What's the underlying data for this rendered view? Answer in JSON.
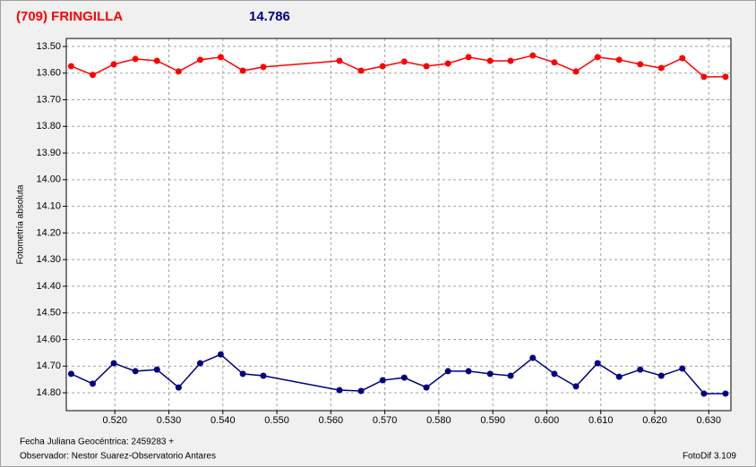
{
  "chart_data": {
    "type": "line",
    "title": "(709) FRINGILLA",
    "subtitle": "14.786",
    "y_label": "Fotometría absoluta",
    "x_label": "Fecha Juliana Geocéntrica: 2459283 +",
    "observer": "Observador: Nestor Suarez-Observatorio Antares",
    "software": "FotoDif 3.109",
    "x": [
      0.5119,
      0.5159,
      0.5198,
      0.5238,
      0.5278,
      0.5318,
      0.5358,
      0.5396,
      0.5437,
      0.5475,
      0.5616,
      0.5656,
      0.5696,
      0.5736,
      0.5777,
      0.5817,
      0.5855,
      0.5895,
      0.5933,
      0.5974,
      0.6014,
      0.6054,
      0.6094,
      0.6134,
      0.6173,
      0.6212,
      0.6251,
      0.6291,
      0.6331
    ],
    "series": [
      {
        "color": "#ff0000",
        "values": [
          13.574,
          13.607,
          13.567,
          13.547,
          13.554,
          13.594,
          13.55,
          13.54,
          13.591,
          13.577,
          13.554,
          13.591,
          13.574,
          13.557,
          13.574,
          13.564,
          13.54,
          13.554,
          13.554,
          13.534,
          13.56,
          13.594,
          13.54,
          13.55,
          13.567,
          13.581,
          13.544,
          13.614,
          13.614
        ]
      },
      {
        "color": "#000080",
        "values": [
          14.729,
          14.766,
          14.689,
          14.719,
          14.713,
          14.78,
          14.689,
          14.656,
          14.729,
          14.736,
          14.79,
          14.793,
          14.753,
          14.743,
          14.78,
          14.719,
          14.719,
          14.729,
          14.736,
          14.669,
          14.729,
          14.776,
          14.689,
          14.74,
          14.713,
          14.736,
          14.709,
          14.803,
          14.803
        ]
      }
    ],
    "xlim": [
      0.511,
      0.6341
    ],
    "ylim": [
      13.47,
      14.867
    ],
    "y_inverted": true,
    "grid": true,
    "xticks": [
      {
        "value": 0.52,
        "label": "0.520"
      },
      {
        "value": 0.53,
        "label": "0.530"
      },
      {
        "value": 0.54,
        "label": "0.540"
      },
      {
        "value": 0.55,
        "label": "0.550"
      },
      {
        "value": 0.56,
        "label": "0.560"
      },
      {
        "value": 0.57,
        "label": "0.570"
      },
      {
        "value": 0.58,
        "label": "0.580"
      },
      {
        "value": 0.59,
        "label": "0.590"
      },
      {
        "value": 0.6,
        "label": "0.600"
      },
      {
        "value": 0.61,
        "label": "0.610"
      },
      {
        "value": 0.62,
        "label": "0.620"
      },
      {
        "value": 0.63,
        "label": "0.630"
      }
    ],
    "yticks": [
      {
        "value": 13.5,
        "label": "13.50"
      },
      {
        "value": 13.6,
        "label": "13.60"
      },
      {
        "value": 13.7,
        "label": "13.70"
      },
      {
        "value": 13.8,
        "label": "13.80"
      },
      {
        "value": 13.9,
        "label": "13.90"
      },
      {
        "value": 14.0,
        "label": "14.00"
      },
      {
        "value": 14.1,
        "label": "14.10"
      },
      {
        "value": 14.2,
        "label": "14.20"
      },
      {
        "value": 14.3,
        "label": "14.30"
      },
      {
        "value": 14.4,
        "label": "14.40"
      },
      {
        "value": 14.5,
        "label": "14.50"
      },
      {
        "value": 14.6,
        "label": "14.60"
      },
      {
        "value": 14.7,
        "label": "14.70"
      },
      {
        "value": 14.8,
        "label": "14.80"
      }
    ]
  }
}
